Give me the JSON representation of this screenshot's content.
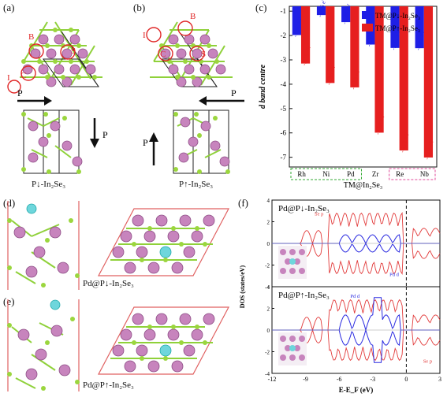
{
  "panels": {
    "a": {
      "label": "(a)",
      "sites": [
        "B",
        "S",
        "I",
        "C"
      ],
      "polarization_label": "P",
      "caption": "P↓-In₂Se₃"
    },
    "b": {
      "label": "(b)",
      "sites": [
        "B",
        "I",
        "C",
        "S"
      ],
      "polarization_label": "P",
      "caption": "P↑-In₂Se₃"
    },
    "d": {
      "label": "(d)",
      "caption": "Pd@P↓-In₂Se₃"
    },
    "e": {
      "label": "(e)",
      "caption": "Pd@P↑-In₂Se₃"
    },
    "f": {
      "label": "(f)"
    }
  },
  "chart_data": [
    {
      "panel": "(c)",
      "type": "bar",
      "title": "",
      "xlabel": "TM@In₂Se₃",
      "ylabel": "d band centre",
      "ylim": [
        -7.4,
        -0.8
      ],
      "yticks": [
        -1,
        -2,
        -3,
        -4,
        -5,
        -6,
        -7
      ],
      "categories": [
        "Rh",
        "Ni",
        "Pd",
        "Zr",
        "Re",
        "Nb"
      ],
      "series": [
        {
          "name": "TM@P↓-In₂Se₃",
          "color": "#1f1fe6",
          "values": [
            -1.98,
            -1.16,
            -1.45,
            -2.37,
            -2.51,
            -2.52
          ],
          "labels": [
            "-1.98 eV",
            "-1.16 eV",
            "-1.45 eV",
            "-2.37 eV",
            "-2.51 eV",
            "-2.52 eV"
          ]
        },
        {
          "name": "TM@P↑-In₂Se₃",
          "color": "#e61f1f",
          "values": [
            -3.15,
            -3.95,
            -4.13,
            -5.99,
            -6.72,
            -7.01
          ],
          "labels": [
            "-3.15 eV",
            "-3.95 eV",
            "-4.13 eV",
            "-5.99 eV",
            "-6.72 eV",
            "-7.01 eV"
          ]
        }
      ],
      "legend": "top-right",
      "grid": false
    },
    {
      "panel": "(f)",
      "type": "line",
      "xlabel": "E-E_F (eV)",
      "ylabel": "DOS (states/eV)",
      "xlim": [
        -12,
        3
      ],
      "xticks": [
        -12,
        -9,
        -6,
        -3,
        0,
        3
      ],
      "ylim": [
        -4,
        4
      ],
      "yticks": [
        4,
        2,
        0,
        -2,
        -4
      ],
      "subplots": [
        {
          "title": "Pd@P↓-In₂Se₃",
          "series": [
            {
              "name": "Se p",
              "color": "#e23b3b"
            },
            {
              "name": "Pd d",
              "color": "#2a2ae0"
            }
          ]
        },
        {
          "title": "Pd@P↑-In₂Se₃",
          "series": [
            {
              "name": "Pd d",
              "color": "#2a2ae0"
            },
            {
              "name": "Se p",
              "color": "#e23b3b"
            }
          ]
        }
      ],
      "fermi_level": 0,
      "grid": false
    }
  ]
}
